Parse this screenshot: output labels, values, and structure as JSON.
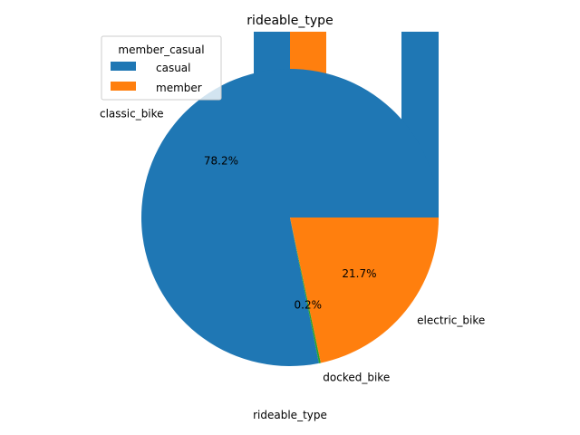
{
  "chart_data": {
    "type": "pie",
    "title": "rideable_type",
    "xlabel": "rideable_type",
    "ylabel": "",
    "slices": [
      {
        "label": "classic_bike",
        "pct": 78.2,
        "pct_label": "78.2%",
        "color": "#1f77b4"
      },
      {
        "label": "docked_bike",
        "pct": 0.2,
        "pct_label": "0.2%",
        "color": "#2ca02c"
      },
      {
        "label": "electric_bike",
        "pct": 21.7,
        "pct_label": "21.7%",
        "color": "#ff7f0e"
      }
    ],
    "legend": {
      "title": "member_casual",
      "placement": "upper-left",
      "entries": [
        {
          "label": "casual",
          "color": "#1f77b4"
        },
        {
          "label": "member",
          "color": "#ff7f0e"
        }
      ]
    }
  }
}
